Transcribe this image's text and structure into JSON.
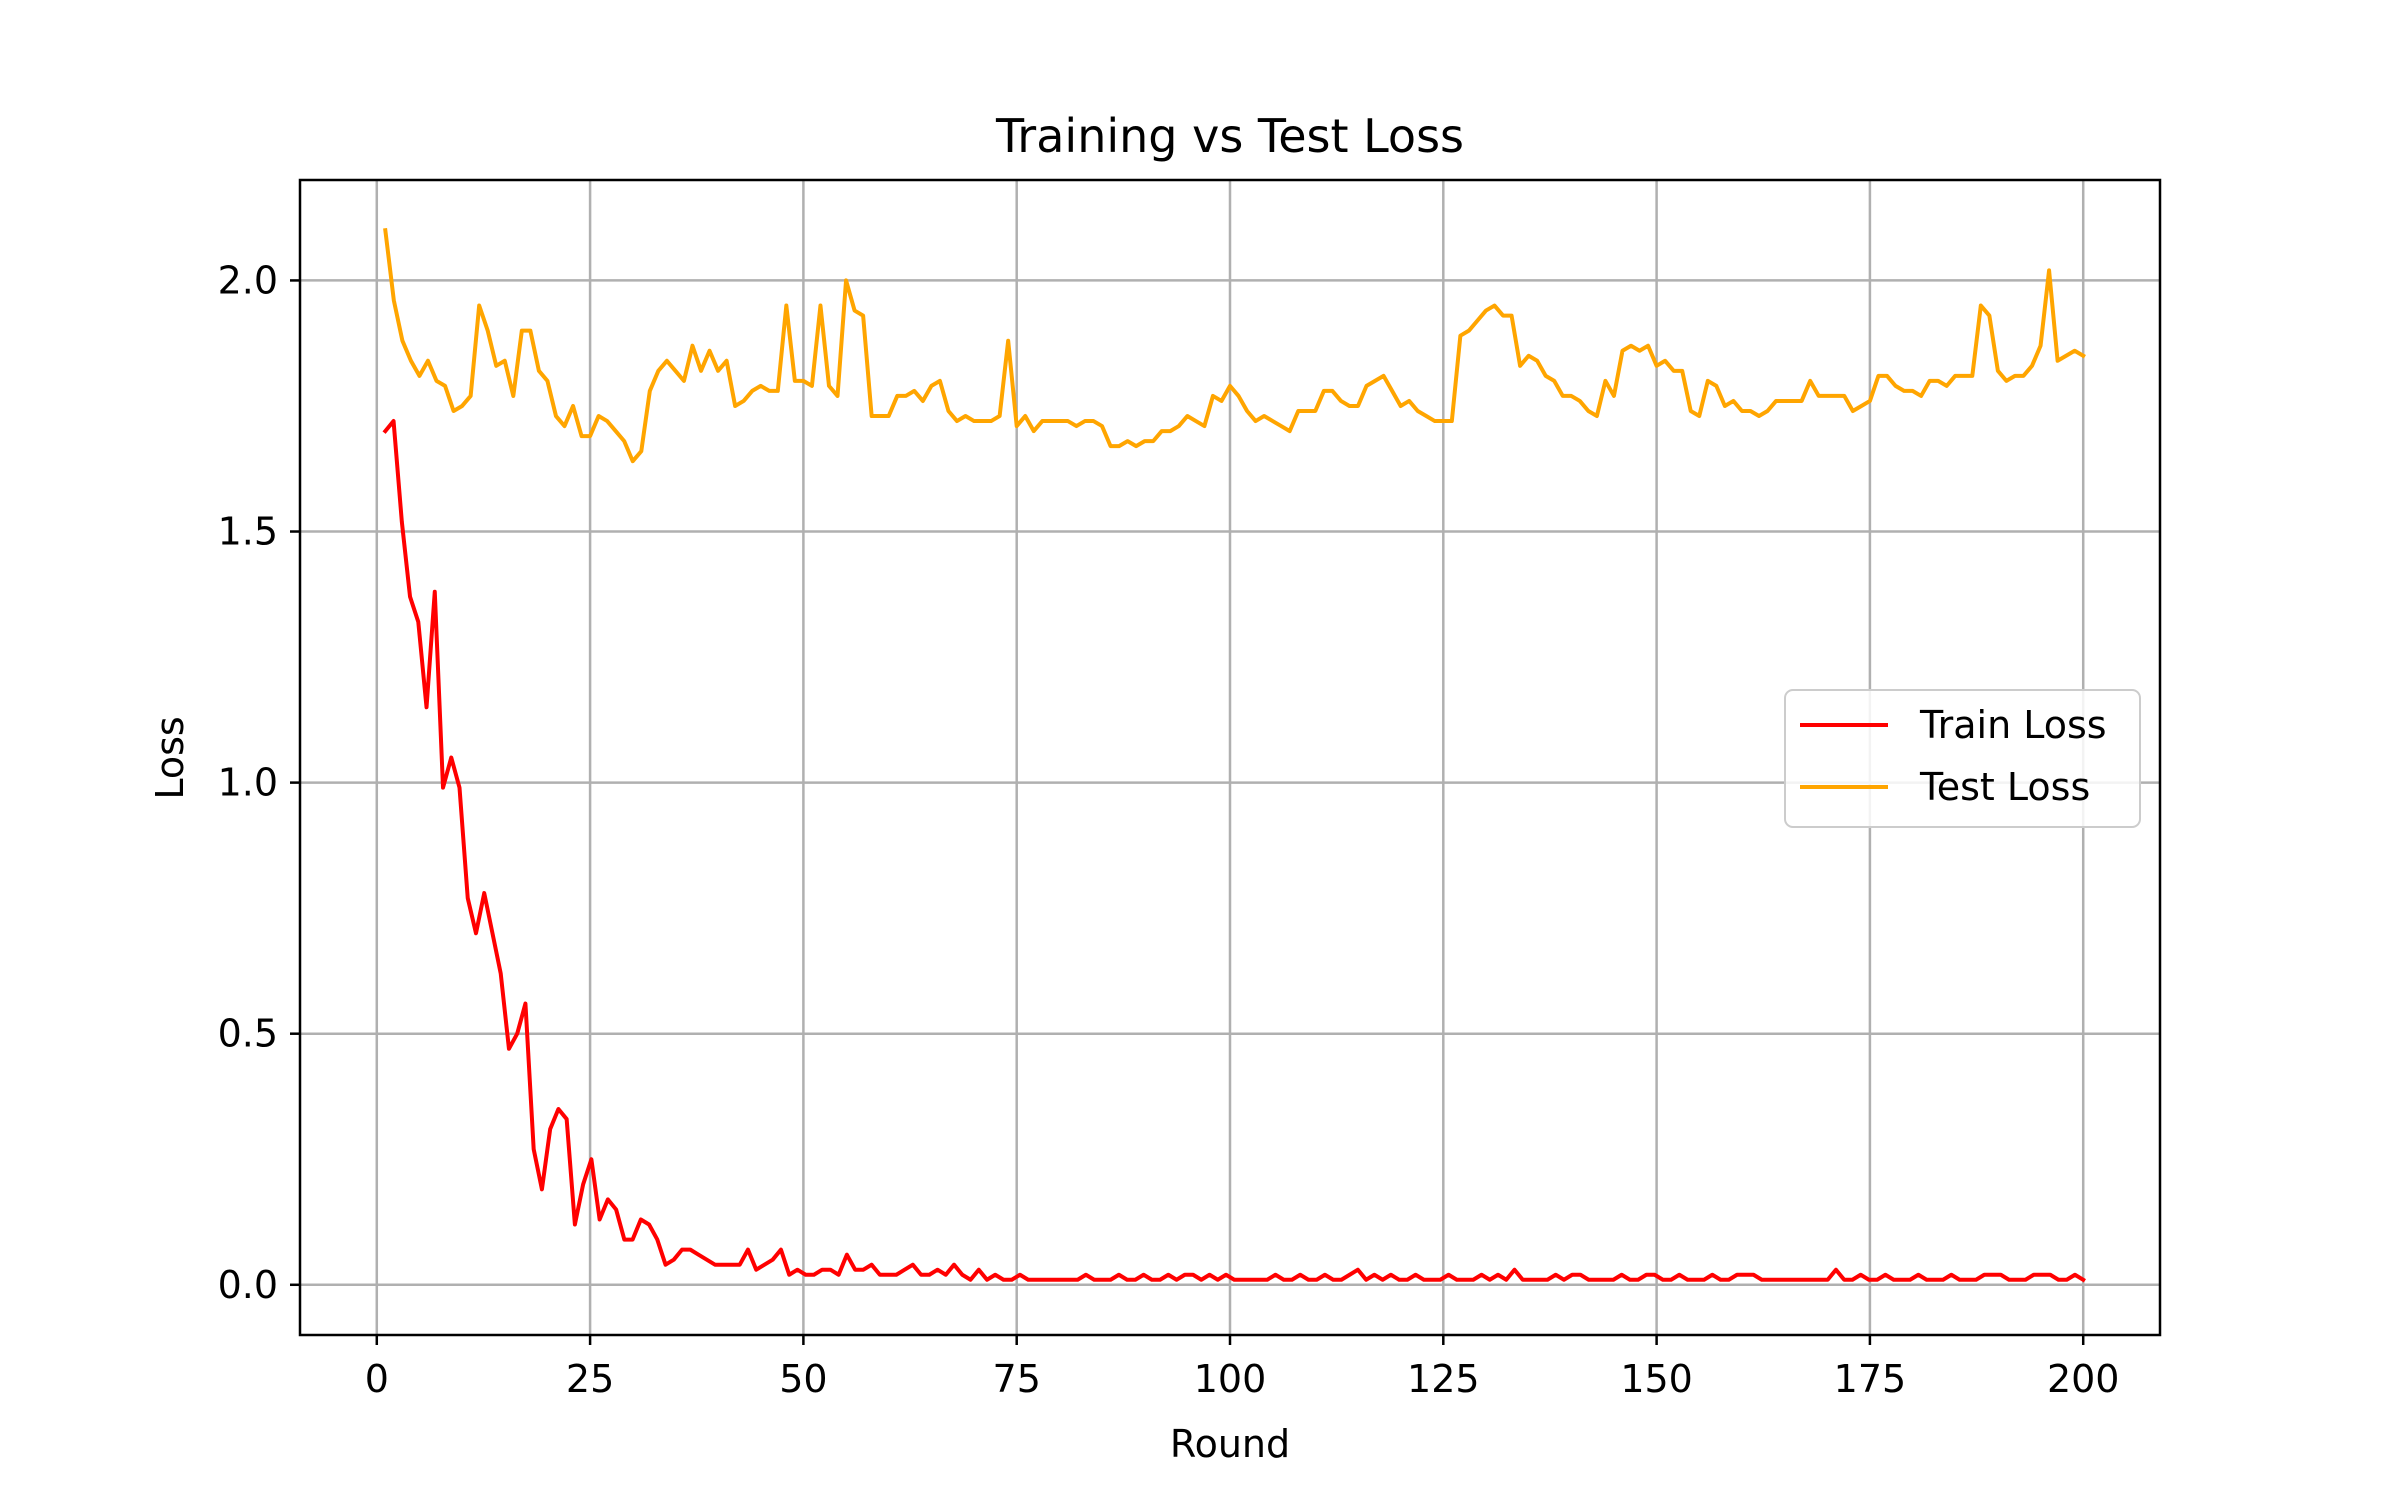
{
  "chart_data": {
    "type": "line",
    "title": "Training vs Test Loss",
    "xlabel": "Round",
    "ylabel": "Loss",
    "xlim": [
      -9,
      209
    ],
    "ylim": [
      -0.1,
      2.2
    ],
    "xticks": [
      0,
      25,
      50,
      75,
      100,
      125,
      150,
      175,
      200
    ],
    "xtick_labels": [
      "0",
      "25",
      "50",
      "75",
      "100",
      "125",
      "150",
      "175",
      "200"
    ],
    "yticks": [
      0.0,
      0.5,
      1.0,
      1.5,
      2.0
    ],
    "ytick_labels": [
      "0.0",
      "0.5",
      "1.0",
      "1.5",
      "2.0"
    ],
    "grid": true,
    "legend_position": "center-right",
    "x_start": 1,
    "x_end": 200,
    "series": [
      {
        "name": "Train Loss",
        "color": "#ff0000",
        "values": [
          1.7,
          1.72,
          1.52,
          1.37,
          1.32,
          1.15,
          1.38,
          0.99,
          1.05,
          0.99,
          0.77,
          0.7,
          0.78,
          0.7,
          0.62,
          0.47,
          0.5,
          0.56,
          0.27,
          0.19,
          0.31,
          0.35,
          0.33,
          0.12,
          0.2,
          0.25,
          0.13,
          0.17,
          0.15,
          0.09,
          0.09,
          0.13,
          0.12,
          0.09,
          0.04,
          0.05,
          0.07,
          0.07,
          0.06,
          0.05,
          0.04,
          0.04,
          0.04,
          0.04,
          0.07,
          0.03,
          0.04,
          0.05,
          0.07,
          0.02,
          0.03,
          0.02,
          0.02,
          0.03,
          0.03,
          0.02,
          0.06,
          0.03,
          0.03,
          0.04,
          0.02,
          0.02,
          0.02,
          0.03,
          0.04,
          0.02,
          0.02,
          0.03,
          0.02,
          0.04,
          0.02,
          0.01,
          0.03,
          0.01,
          0.02,
          0.01,
          0.01,
          0.02,
          0.01,
          0.01,
          0.01,
          0.01,
          0.01,
          0.01,
          0.01,
          0.02,
          0.01,
          0.01,
          0.01,
          0.02,
          0.01,
          0.01,
          0.02,
          0.01,
          0.01,
          0.02,
          0.01,
          0.02,
          0.02,
          0.01,
          0.02,
          0.01,
          0.02,
          0.01,
          0.01,
          0.01,
          0.01,
          0.01,
          0.02,
          0.01,
          0.01,
          0.02,
          0.01,
          0.01,
          0.02,
          0.01,
          0.01,
          0.02,
          0.03,
          0.01,
          0.02,
          0.01,
          0.02,
          0.01,
          0.01,
          0.02,
          0.01,
          0.01,
          0.01,
          0.02,
          0.01,
          0.01,
          0.01,
          0.02,
          0.01,
          0.02,
          0.01,
          0.03,
          0.01,
          0.01,
          0.01,
          0.01,
          0.02,
          0.01,
          0.02,
          0.02,
          0.01,
          0.01,
          0.01,
          0.01,
          0.02,
          0.01,
          0.01,
          0.02,
          0.02,
          0.01,
          0.01,
          0.02,
          0.01,
          0.01,
          0.01,
          0.02,
          0.01,
          0.01,
          0.02,
          0.02,
          0.02,
          0.01,
          0.01,
          0.01,
          0.01,
          0.01,
          0.01,
          0.01,
          0.01,
          0.01,
          0.03,
          0.01,
          0.01,
          0.02,
          0.01,
          0.01,
          0.02,
          0.01,
          0.01,
          0.01,
          0.02,
          0.01,
          0.01,
          0.01,
          0.02,
          0.01,
          0.01,
          0.01,
          0.02,
          0.02,
          0.02,
          0.01,
          0.01,
          0.01,
          0.02,
          0.02,
          0.02,
          0.01,
          0.01,
          0.02,
          0.01
        ]
      },
      {
        "name": "Test Loss",
        "color": "#ffa500",
        "values": [
          2.1,
          1.96,
          1.88,
          1.84,
          1.81,
          1.84,
          1.8,
          1.79,
          1.74,
          1.75,
          1.77,
          1.95,
          1.9,
          1.83,
          1.84,
          1.77,
          1.9,
          1.9,
          1.82,
          1.8,
          1.73,
          1.71,
          1.75,
          1.69,
          1.69,
          1.73,
          1.72,
          1.7,
          1.68,
          1.64,
          1.66,
          1.78,
          1.82,
          1.84,
          1.82,
          1.8,
          1.87,
          1.82,
          1.86,
          1.82,
          1.84,
          1.75,
          1.76,
          1.78,
          1.79,
          1.78,
          1.78,
          1.95,
          1.8,
          1.8,
          1.79,
          1.95,
          1.79,
          1.77,
          2.0,
          1.94,
          1.93,
          1.73,
          1.73,
          1.73,
          1.77,
          1.77,
          1.78,
          1.76,
          1.79,
          1.8,
          1.74,
          1.72,
          1.73,
          1.72,
          1.72,
          1.72,
          1.73,
          1.88,
          1.71,
          1.73,
          1.7,
          1.72,
          1.72,
          1.72,
          1.72,
          1.71,
          1.72,
          1.72,
          1.71,
          1.67,
          1.67,
          1.68,
          1.67,
          1.68,
          1.68,
          1.7,
          1.7,
          1.71,
          1.73,
          1.72,
          1.71,
          1.77,
          1.76,
          1.79,
          1.77,
          1.74,
          1.72,
          1.73,
          1.72,
          1.71,
          1.7,
          1.74,
          1.74,
          1.74,
          1.78,
          1.78,
          1.76,
          1.75,
          1.75,
          1.79,
          1.8,
          1.81,
          1.78,
          1.75,
          1.76,
          1.74,
          1.73,
          1.72,
          1.72,
          1.72,
          1.89,
          1.9,
          1.92,
          1.94,
          1.95,
          1.93,
          1.93,
          1.83,
          1.85,
          1.84,
          1.81,
          1.8,
          1.77,
          1.77,
          1.76,
          1.74,
          1.73,
          1.8,
          1.77,
          1.86,
          1.87,
          1.86,
          1.87,
          1.83,
          1.84,
          1.82,
          1.82,
          1.74,
          1.73,
          1.8,
          1.79,
          1.75,
          1.76,
          1.74,
          1.74,
          1.73,
          1.74,
          1.76,
          1.76,
          1.76,
          1.76,
          1.8,
          1.77,
          1.77,
          1.77,
          1.77,
          1.74,
          1.75,
          1.76,
          1.81,
          1.81,
          1.79,
          1.78,
          1.78,
          1.77,
          1.8,
          1.8,
          1.79,
          1.81,
          1.81,
          1.81,
          1.95,
          1.93,
          1.82,
          1.8,
          1.81,
          1.81,
          1.83,
          1.87,
          2.02,
          1.84,
          1.85,
          1.86,
          1.85
        ]
      }
    ]
  }
}
